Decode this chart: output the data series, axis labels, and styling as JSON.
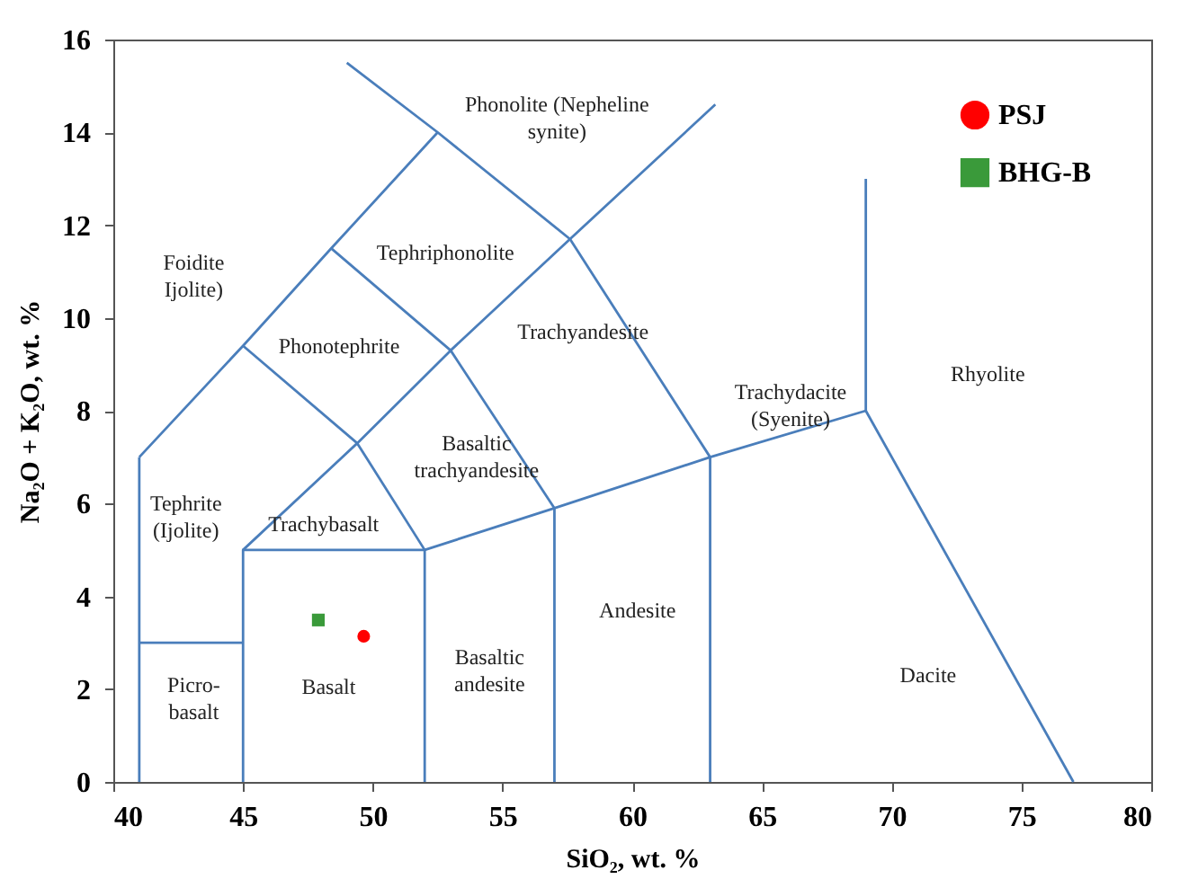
{
  "chart_data": {
    "type": "line",
    "xlabel": "SiO₂, wt. %",
    "ylabel": "Na₂O + K₂O, wt. %",
    "xlim": [
      40,
      80
    ],
    "xticks": [
      40,
      45,
      50,
      55,
      60,
      65,
      70,
      75,
      80
    ],
    "ylim": [
      0,
      16
    ],
    "yticks": [
      0,
      2,
      4,
      6,
      8,
      10,
      12,
      14,
      16
    ],
    "grid": false,
    "legend": "top right",
    "line_style": "solid",
    "series": [
      {
        "type": "line",
        "color": "#4a7ebb",
        "x": [
          41,
          41
        ],
        "values": [
          0,
          7
        ]
      },
      {
        "type": "line",
        "color": "#4a7ebb",
        "x": [
          41,
          45
        ],
        "values": [
          3,
          3
        ]
      },
      {
        "type": "line",
        "color": "#4a7ebb",
        "x": [
          45,
          45,
          52,
          52
        ],
        "values": [
          0,
          5,
          5,
          0
        ]
      },
      {
        "type": "line",
        "color": "#4a7ebb",
        "x": [
          57,
          57
        ],
        "values": [
          0,
          5.9
        ]
      },
      {
        "type": "line",
        "color": "#4a7ebb",
        "x": [
          63,
          63
        ],
        "values": [
          0,
          7
        ]
      },
      {
        "type": "line",
        "color": "#4a7ebb",
        "x": [
          52,
          57,
          63,
          69,
          77
        ],
        "values": [
          5,
          5.9,
          7,
          8,
          0
        ]
      },
      {
        "type": "line",
        "color": "#4a7ebb",
        "x": [
          69,
          69
        ],
        "values": [
          8,
          13
        ]
      },
      {
        "type": "line",
        "color": "#4a7ebb",
        "x": [
          41,
          45,
          48.4,
          52.5
        ],
        "values": [
          7,
          9.4,
          11.5,
          14
        ]
      },
      {
        "type": "line",
        "color": "#4a7ebb",
        "x": [
          45,
          49.4,
          52
        ],
        "values": [
          9.4,
          7.3,
          5
        ]
      },
      {
        "type": "line",
        "color": "#4a7ebb",
        "x": [
          45,
          49.4,
          53,
          57.6,
          63.2
        ],
        "values": [
          5,
          7.3,
          9.3,
          11.7,
          14.6
        ]
      },
      {
        "type": "line",
        "color": "#4a7ebb",
        "x": [
          48.4,
          53,
          57
        ],
        "values": [
          11.5,
          9.3,
          5.9
        ]
      },
      {
        "type": "line",
        "color": "#4a7ebb",
        "x": [
          49,
          52.5,
          57.6,
          63
        ],
        "values": [
          15.5,
          14,
          11.7,
          7
        ]
      },
      {
        "type": "scatter",
        "name": "PSJ",
        "color": "#ff0000",
        "marker": "circle",
        "x": [
          49.65
        ],
        "values": [
          3.14
        ]
      },
      {
        "type": "scatter",
        "name": "BHG-B",
        "color": "#3a9a3a",
        "marker": "square",
        "x": [
          47.9
        ],
        "values": [
          3.49
        ]
      }
    ],
    "annotations": [
      "Phonolite (Nepheline\nsynite)",
      "Foidite\nIjolite)",
      "Tephriphonolite",
      "Phonotephrite",
      "Trachyandesite",
      "Trachydacite\n(Syenite)",
      "Rhyolite",
      "Basaltic\ntrachyandesite",
      "Tephrite\n(Ijolite)",
      "Trachybasalt",
      "Basaltic\nandesite",
      "Andesite",
      "Dacite",
      "Basalt",
      "Picro-\nbasalt"
    ]
  }
}
